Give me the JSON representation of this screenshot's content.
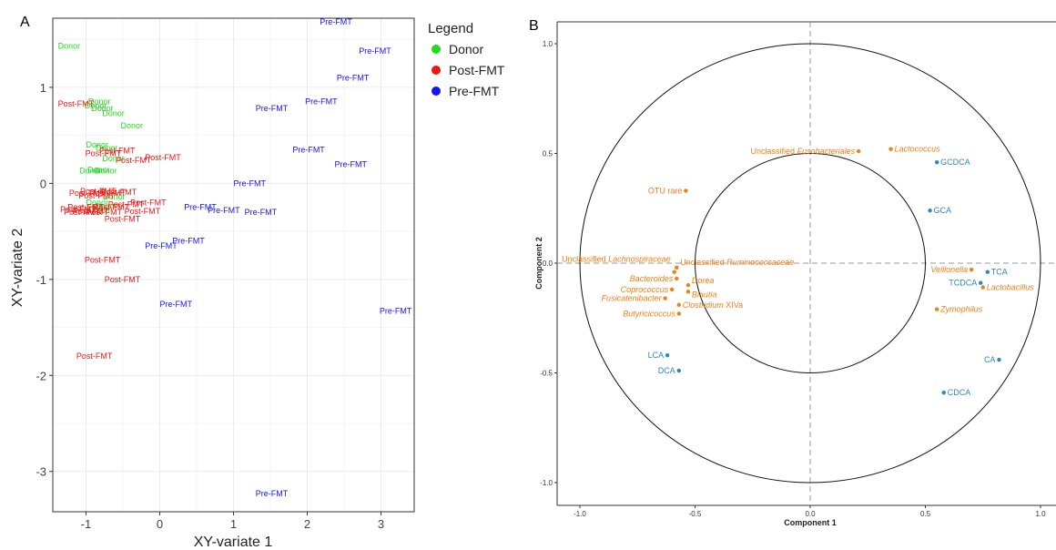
{
  "panels": {
    "a_letter": "A",
    "b_letter": "B"
  },
  "colors": {
    "donor": "#1fdc1f",
    "post": "#f01414",
    "pre": "#1414f0",
    "orange": "#f07f16",
    "blue": "#2d87c7",
    "grid_bg": "#ffffff",
    "gridline": "#ebebeb"
  },
  "chart_data": [
    {
      "type": "scatter",
      "title": "",
      "xlabel": "XY-variate 1",
      "ylabel": "XY-variate 2",
      "xlim": [
        -1.45,
        3.45
      ],
      "ylim": [
        -3.42,
        1.72
      ],
      "x_ticks": [
        "-1",
        "0",
        "1",
        "2",
        "3"
      ],
      "y_ticks": [
        "1",
        "0",
        "-1",
        "-2",
        "-3"
      ],
      "x_tick_values": [
        -1,
        0,
        1,
        2,
        3
      ],
      "y_tick_values": [
        1,
        0,
        -1,
        -2,
        -3
      ],
      "grid": true,
      "legend": {
        "title": "Legend",
        "placement": "right",
        "entries": [
          "Donor",
          "Post-FMT",
          "Pre-FMT"
        ]
      },
      "series": [
        {
          "name": "Donor",
          "color_key": "donor",
          "label": "Donor",
          "points": [
            [
              -1.38,
              1.43
            ],
            [
              -0.97,
              0.85
            ],
            [
              -1.02,
              0.81
            ],
            [
              -0.93,
              0.78
            ],
            [
              -0.78,
              0.73
            ],
            [
              -0.53,
              0.6
            ],
            [
              -1.0,
              0.4
            ],
            [
              -0.87,
              0.37
            ],
            [
              -0.78,
              0.26
            ],
            [
              -0.98,
              0.14
            ],
            [
              -0.88,
              0.13
            ],
            [
              -1.09,
              0.13
            ],
            [
              -0.77,
              -0.14
            ],
            [
              -1.0,
              -0.2
            ],
            [
              -0.88,
              -0.24
            ],
            [
              -0.97,
              -0.27
            ]
          ]
        },
        {
          "name": "Post-FMT",
          "color_key": "post",
          "label": "Post-FMT",
          "points": [
            [
              -1.38,
              0.83
            ],
            [
              -1.01,
              0.31
            ],
            [
              -0.82,
              0.34
            ],
            [
              -0.6,
              0.24
            ],
            [
              -0.2,
              0.27
            ],
            [
              -1.23,
              -0.1
            ],
            [
              -1.08,
              -0.08
            ],
            [
              -0.95,
              -0.1
            ],
            [
              -0.8,
              -0.09
            ],
            [
              -1.1,
              -0.13
            ],
            [
              -1.35,
              -0.27
            ],
            [
              -1.25,
              -0.25
            ],
            [
              -1.18,
              -0.29
            ],
            [
              -0.9,
              -0.25
            ],
            [
              -1.0,
              -0.3
            ],
            [
              -1.3,
              -0.3
            ],
            [
              -0.7,
              -0.22
            ],
            [
              -0.4,
              -0.2
            ],
            [
              -0.48,
              -0.29
            ],
            [
              -0.75,
              -0.37
            ],
            [
              -1.02,
              -0.8
            ],
            [
              -0.75,
              -1.0
            ],
            [
              -1.13,
              -1.8
            ]
          ]
        },
        {
          "name": "Pre-FMT",
          "color_key": "pre",
          "label": "Pre-FMT",
          "points": [
            [
              2.17,
              1.68
            ],
            [
              2.7,
              1.38
            ],
            [
              2.4,
              1.1
            ],
            [
              1.3,
              0.78
            ],
            [
              1.97,
              0.85
            ],
            [
              1.8,
              0.35
            ],
            [
              2.37,
              0.2
            ],
            [
              1.0,
              0.0
            ],
            [
              0.33,
              -0.25
            ],
            [
              0.65,
              -0.28
            ],
            [
              1.15,
              -0.3
            ],
            [
              0.17,
              -0.6
            ],
            [
              -0.2,
              -0.65
            ],
            [
              0.0,
              -1.26
            ],
            [
              2.98,
              -1.33
            ],
            [
              1.3,
              -3.23
            ]
          ]
        }
      ]
    },
    {
      "type": "scatter",
      "title": "",
      "xlabel": "Component 1",
      "ylabel": "Component 2",
      "xlim": [
        -1.1,
        1.1
      ],
      "ylim": [
        -1.12,
        1.1
      ],
      "x_ticks": [
        "-1.0",
        "-0.5",
        "0.0",
        "0.5",
        "1.0"
      ],
      "y_ticks": [
        "1.0",
        "0.5",
        "0.0",
        "-0.5",
        "-1.0"
      ],
      "x_tick_values": [
        -1.0,
        -0.5,
        0.0,
        0.5,
        1.0
      ],
      "y_tick_values": [
        1.0,
        0.5,
        0.0,
        -0.5,
        -1.0
      ],
      "grid": false,
      "circles": [
        1.0,
        0.5
      ],
      "points": [
        {
          "x": 0.21,
          "y": 0.51,
          "label": "Unclassified",
          "italic": "Fusobacteriales",
          "side": "left",
          "color_key": "orange"
        },
        {
          "x": 0.35,
          "y": 0.52,
          "label": "",
          "italic": "Lactococcus",
          "side": "right",
          "color_key": "orange"
        },
        {
          "x": 0.55,
          "y": 0.46,
          "label": "GCDCA",
          "italic": "",
          "side": "right",
          "color_key": "blue"
        },
        {
          "x": -0.54,
          "y": 0.33,
          "label": "OTU rare",
          "italic": "",
          "side": "left",
          "color_key": "orange"
        },
        {
          "x": 0.52,
          "y": 0.24,
          "label": "GCA",
          "italic": "",
          "side": "right",
          "color_key": "blue"
        },
        {
          "x": -0.59,
          "y": -0.04,
          "label": "Unclassified",
          "italic": "Lachnospiraceae",
          "side": "left",
          "dy": -14,
          "color_key": "orange"
        },
        {
          "x": -0.58,
          "y": -0.02,
          "label": "Unclassified",
          "italic": "Ruminococcaceae",
          "side": "right",
          "dy": -6,
          "color_key": "orange"
        },
        {
          "x": -0.58,
          "y": -0.07,
          "label": "",
          "italic": "Bacteroides",
          "side": "left",
          "color_key": "orange"
        },
        {
          "x": -0.53,
          "y": -0.1,
          "label": "",
          "italic": "Dorea",
          "side": "right",
          "dy": -5,
          "color_key": "orange"
        },
        {
          "x": -0.6,
          "y": -0.12,
          "label": "",
          "italic": "Coprococcus",
          "side": "left",
          "color_key": "orange"
        },
        {
          "x": -0.53,
          "y": -0.13,
          "label": "",
          "italic": "Blautia",
          "side": "right",
          "dy": 3,
          "color_key": "orange"
        },
        {
          "x": -0.63,
          "y": -0.16,
          "label": "",
          "italic": "Fusicatenibacter",
          "side": "left",
          "color_key": "orange"
        },
        {
          "x": -0.57,
          "y": -0.19,
          "label": "XIVa",
          "italic": "Clostridium",
          "side": "right",
          "color_key": "orange"
        },
        {
          "x": -0.57,
          "y": -0.23,
          "label": "",
          "italic": "Butyricicoccus",
          "side": "left",
          "color_key": "orange"
        },
        {
          "x": 0.7,
          "y": -0.03,
          "label": "",
          "italic": "Veillonella",
          "side": "left",
          "color_key": "orange"
        },
        {
          "x": 0.77,
          "y": -0.04,
          "label": "TCA",
          "italic": "",
          "side": "right",
          "color_key": "blue"
        },
        {
          "x": 0.74,
          "y": -0.09,
          "label": "TCDCA",
          "italic": "",
          "side": "left",
          "color_key": "blue"
        },
        {
          "x": 0.75,
          "y": -0.11,
          "label": "",
          "italic": "Lactobacillus",
          "side": "right",
          "color_key": "orange"
        },
        {
          "x": 0.55,
          "y": -0.21,
          "label": "",
          "italic": "Zymophilus",
          "side": "right",
          "color_key": "orange"
        },
        {
          "x": -0.62,
          "y": -0.42,
          "label": "LCA",
          "italic": "",
          "side": "left",
          "color_key": "blue"
        },
        {
          "x": -0.57,
          "y": -0.49,
          "label": "DCA",
          "italic": "",
          "side": "left",
          "color_key": "blue"
        },
        {
          "x": 0.82,
          "y": -0.44,
          "label": "CA",
          "italic": "",
          "side": "left",
          "color_key": "blue"
        },
        {
          "x": 0.58,
          "y": -0.59,
          "label": "CDCA",
          "italic": "",
          "side": "right",
          "color_key": "blue"
        }
      ]
    }
  ]
}
